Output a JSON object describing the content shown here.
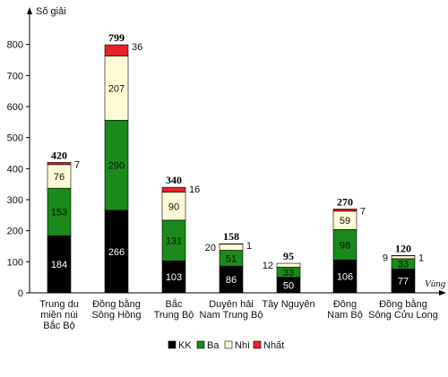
{
  "chart_data": {
    "type": "bar",
    "stacked": true,
    "ylabel": "Số giải",
    "xlabel": "Vùng",
    "ylim": [
      0,
      900
    ],
    "yticks": [
      0,
      100,
      200,
      300,
      400,
      500,
      600,
      700,
      800
    ],
    "categories": [
      [
        "Trung du",
        "miền núi",
        "Bắc Bộ"
      ],
      [
        "Đồng bằng",
        "Sông Hồng"
      ],
      [
        "Bắc",
        "Trung Bộ"
      ],
      [
        "Duyên hải",
        "Nam Trung Bộ"
      ],
      [
        "Tây Nguyên"
      ],
      [
        "Đông",
        "Nam Bộ"
      ],
      [
        "Đồng bằng",
        "Sông Cửu Long"
      ]
    ],
    "series": [
      {
        "name": "KK",
        "color": "#000000",
        "values": [
          184,
          266,
          103,
          86,
          50,
          106,
          77
        ]
      },
      {
        "name": "Ba",
        "color": "#1a8a1a",
        "values": [
          153,
          290,
          131,
          51,
          33,
          98,
          33
        ]
      },
      {
        "name": "Nhì",
        "color": "#fffbd6",
        "values": [
          76,
          207,
          90,
          20,
          12,
          59,
          9
        ]
      },
      {
        "name": "Nhất",
        "color": "#e8202a",
        "values": [
          7,
          36,
          16,
          1,
          0,
          7,
          1
        ]
      }
    ],
    "totals": [
      420,
      799,
      340,
      158,
      95,
      270,
      120
    ],
    "legend_position": "bottom",
    "grid": false
  }
}
